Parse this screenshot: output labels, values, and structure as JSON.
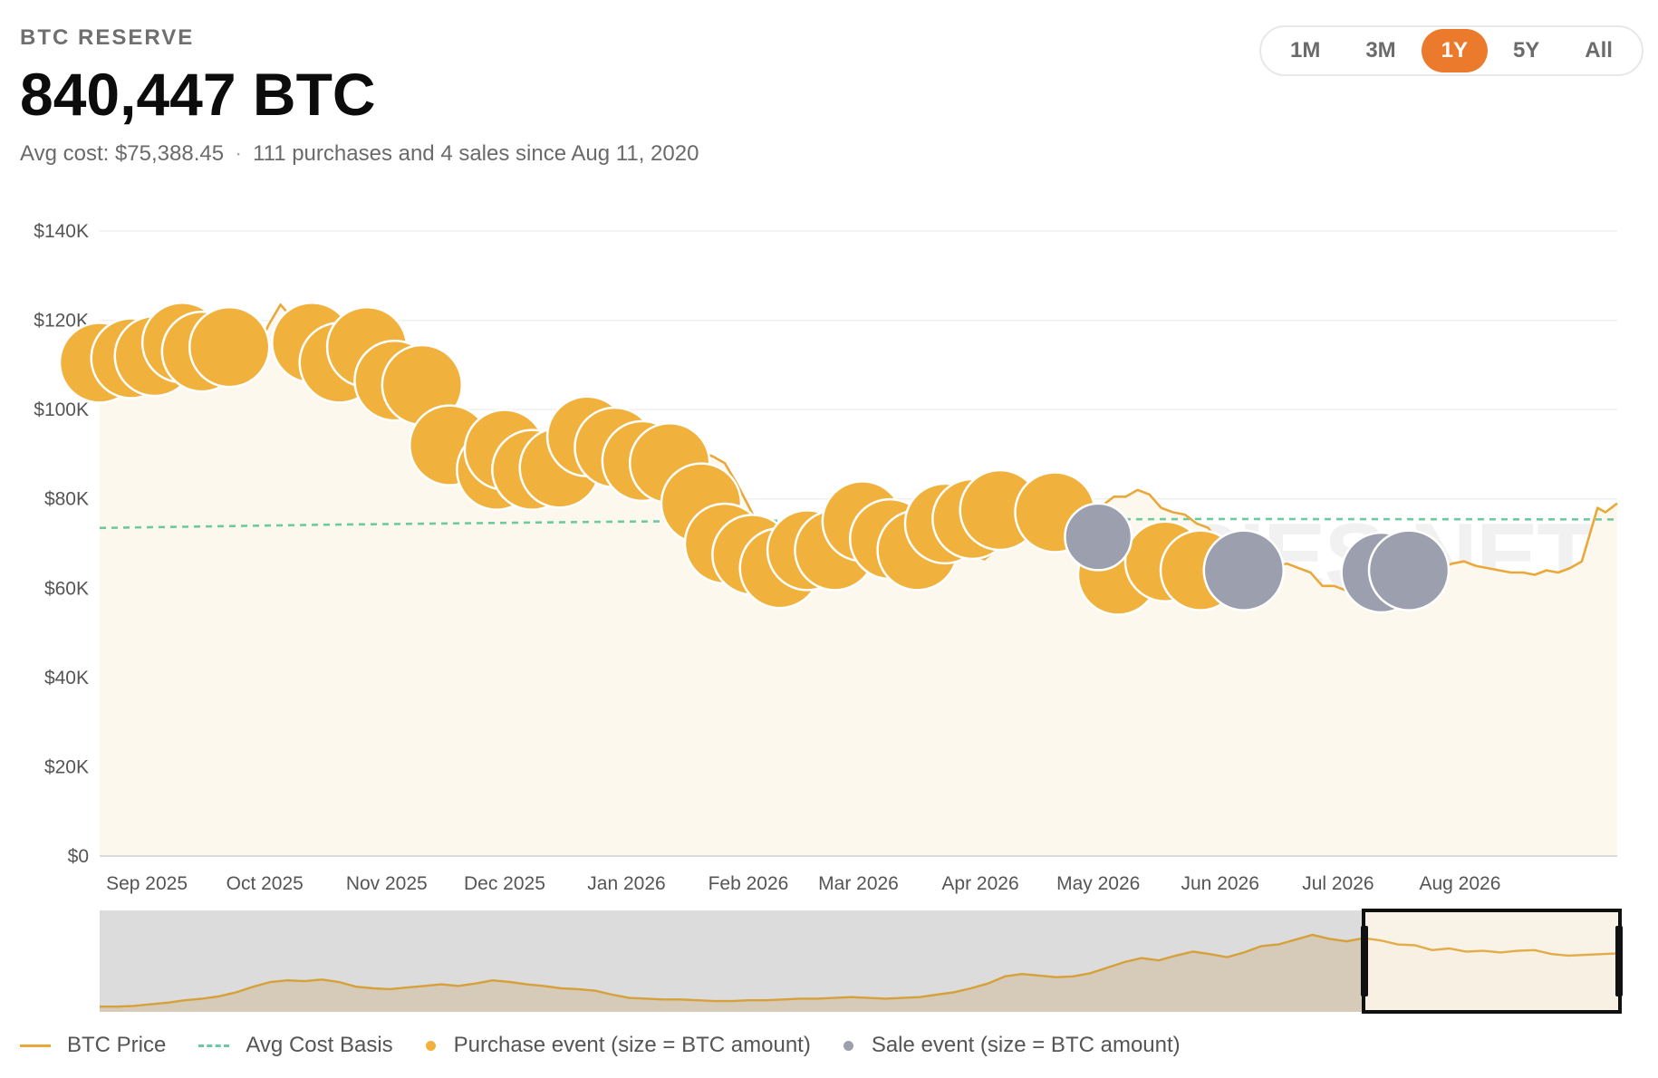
{
  "header": {
    "kicker": "BTC RESERVE",
    "holdings": "840,447 BTC",
    "avg_cost": "Avg cost: $75,388.45",
    "summary": "111 purchases and 4 sales since Aug 11, 2020"
  },
  "ranges": [
    {
      "label": "1M",
      "active": false
    },
    {
      "label": "3M",
      "active": false
    },
    {
      "label": "1Y",
      "active": true
    },
    {
      "label": "5Y",
      "active": false
    },
    {
      "label": "All",
      "active": false
    }
  ],
  "watermark": "BITCOINTREASURIES.NET",
  "colors": {
    "price_line": "#e8a93a",
    "price_area": "#fdf8ee",
    "avg_cost": "#6cc9a0",
    "purchase": "#f0b23d",
    "sale": "#9c9fae",
    "active_range": "#ec7a2c"
  },
  "legend": {
    "price": "BTC Price",
    "avg_cost": "Avg Cost Basis",
    "purchase": "Purchase event (size = BTC amount)",
    "sale": "Sale event (size = BTC amount)"
  },
  "chart_data": {
    "type": "line",
    "x_range": [
      "2025-08-20",
      "2026-09-10"
    ],
    "ylim": [
      0,
      140000
    ],
    "y_ticks": [
      0,
      20000,
      40000,
      60000,
      80000,
      100000,
      120000,
      140000
    ],
    "y_tick_labels": [
      "$0",
      "$20K",
      "$40K",
      "$60K",
      "$80K",
      "$100K",
      "$120K",
      "$140K"
    ],
    "x_ticks": [
      {
        "date": "2025-09-01",
        "label": "Sep 2025"
      },
      {
        "date": "2025-10-01",
        "label": "Oct 2025"
      },
      {
        "date": "2025-11-01",
        "label": "Nov 2025"
      },
      {
        "date": "2025-12-01",
        "label": "Dec 2025"
      },
      {
        "date": "2026-01-01",
        "label": "Jan 2026"
      },
      {
        "date": "2026-02-01",
        "label": "Feb 2026"
      },
      {
        "date": "2026-03-01",
        "label": "Mar 2026"
      },
      {
        "date": "2026-04-01",
        "label": "Apr 2026"
      },
      {
        "date": "2026-05-01",
        "label": "May 2026"
      },
      {
        "date": "2026-06-01",
        "label": "Jun 2026"
      },
      {
        "date": "2026-07-01",
        "label": "Jul 2026"
      },
      {
        "date": "2026-08-01",
        "label": "Aug 2026"
      }
    ],
    "series": [
      {
        "name": "BTC Price",
        "points": [
          [
            "2025-08-20",
            113000
          ],
          [
            "2025-08-24",
            111500
          ],
          [
            "2025-08-28",
            110500
          ],
          [
            "2025-09-01",
            111000
          ],
          [
            "2025-09-05",
            112500
          ],
          [
            "2025-09-09",
            114000
          ],
          [
            "2025-09-13",
            115500
          ],
          [
            "2025-09-17",
            116500
          ],
          [
            "2025-09-20",
            115500
          ],
          [
            "2025-09-23",
            112500
          ],
          [
            "2025-09-26",
            109500
          ],
          [
            "2025-09-29",
            113500
          ],
          [
            "2025-10-02",
            119000
          ],
          [
            "2025-10-05",
            123500
          ],
          [
            "2025-10-07",
            121500
          ],
          [
            "2025-10-09",
            123000
          ],
          [
            "2025-10-11",
            117000
          ],
          [
            "2025-10-13",
            110500
          ],
          [
            "2025-10-15",
            115500
          ],
          [
            "2025-10-17",
            107500
          ],
          [
            "2025-10-19",
            108000
          ],
          [
            "2025-10-21",
            108000
          ],
          [
            "2025-10-23",
            110500
          ],
          [
            "2025-10-25",
            111500
          ],
          [
            "2025-10-28",
            114000
          ],
          [
            "2025-10-31",
            109500
          ],
          [
            "2025-11-03",
            106500
          ],
          [
            "2025-11-05",
            101500
          ],
          [
            "2025-11-07",
            103500
          ],
          [
            "2025-11-09",
            102000
          ],
          [
            "2025-11-11",
            103500
          ],
          [
            "2025-11-13",
            101500
          ],
          [
            "2025-11-15",
            95500
          ],
          [
            "2025-11-17",
            92500
          ],
          [
            "2025-11-19",
            91500
          ],
          [
            "2025-11-21",
            85500
          ],
          [
            "2025-11-24",
            88000
          ],
          [
            "2025-11-27",
            91000
          ],
          [
            "2025-11-30",
            91500
          ],
          [
            "2025-12-03",
            92500
          ],
          [
            "2025-12-06",
            90000
          ],
          [
            "2025-12-09",
            92500
          ],
          [
            "2025-12-12",
            90000
          ],
          [
            "2025-12-15",
            86500
          ],
          [
            "2025-12-18",
            86000
          ],
          [
            "2025-12-21",
            88500
          ],
          [
            "2025-12-24",
            87500
          ],
          [
            "2025-12-27",
            87500
          ],
          [
            "2025-12-30",
            88000
          ],
          [
            "2026-01-02",
            89000
          ],
          [
            "2026-01-05",
            93500
          ],
          [
            "2026-01-08",
            91000
          ],
          [
            "2026-01-11",
            90500
          ],
          [
            "2026-01-14",
            95500
          ],
          [
            "2026-01-17",
            95000
          ],
          [
            "2026-01-20",
            90500
          ],
          [
            "2026-01-23",
            89500
          ],
          [
            "2026-01-26",
            88000
          ],
          [
            "2026-01-29",
            83500
          ],
          [
            "2026-02-01",
            78500
          ],
          [
            "2026-02-03",
            75000
          ],
          [
            "2026-02-05",
            63000
          ],
          [
            "2026-02-07",
            70000
          ],
          [
            "2026-02-10",
            69000
          ],
          [
            "2026-02-13",
            68500
          ],
          [
            "2026-02-16",
            68000
          ],
          [
            "2026-02-19",
            66500
          ],
          [
            "2026-02-22",
            64500
          ],
          [
            "2026-02-25",
            67500
          ],
          [
            "2026-02-28",
            66500
          ],
          [
            "2026-03-03",
            68000
          ],
          [
            "2026-03-06",
            70500
          ],
          [
            "2026-03-09",
            68500
          ],
          [
            "2026-03-12",
            70500
          ],
          [
            "2026-03-15",
            72500
          ],
          [
            "2026-03-18",
            74000
          ],
          [
            "2026-03-21",
            70500
          ],
          [
            "2026-03-24",
            68500
          ],
          [
            "2026-03-27",
            66500
          ],
          [
            "2026-03-30",
            67500
          ],
          [
            "2026-04-02",
            66500
          ],
          [
            "2026-04-05",
            68500
          ],
          [
            "2026-04-08",
            71500
          ],
          [
            "2026-04-11",
            72500
          ],
          [
            "2026-04-14",
            74500
          ],
          [
            "2026-04-17",
            76000
          ],
          [
            "2026-04-20",
            75500
          ],
          [
            "2026-04-23",
            77500
          ],
          [
            "2026-04-26",
            78000
          ],
          [
            "2026-04-29",
            76500
          ],
          [
            "2026-05-02",
            78500
          ],
          [
            "2026-05-05",
            80500
          ],
          [
            "2026-05-08",
            80500
          ],
          [
            "2026-05-11",
            82000
          ],
          [
            "2026-05-14",
            81000
          ],
          [
            "2026-05-17",
            78000
          ],
          [
            "2026-05-20",
            77000
          ],
          [
            "2026-05-23",
            76500
          ],
          [
            "2026-05-26",
            74500
          ],
          [
            "2026-05-29",
            73500
          ],
          [
            "2026-06-01",
            69500
          ],
          [
            "2026-06-03",
            62500
          ],
          [
            "2026-06-06",
            63000
          ],
          [
            "2026-06-09",
            66000
          ],
          [
            "2026-06-12",
            66500
          ],
          [
            "2026-06-15",
            65000
          ],
          [
            "2026-06-18",
            65500
          ],
          [
            "2026-06-21",
            64500
          ],
          [
            "2026-06-24",
            63500
          ],
          [
            "2026-06-27",
            60500
          ],
          [
            "2026-06-30",
            60500
          ],
          [
            "2026-07-03",
            59500
          ],
          [
            "2026-07-06",
            61500
          ],
          [
            "2026-07-09",
            63500
          ],
          [
            "2026-07-12",
            64500
          ],
          [
            "2026-07-15",
            63500
          ],
          [
            "2026-07-18",
            64500
          ],
          [
            "2026-07-21",
            65000
          ],
          [
            "2026-07-24",
            64000
          ],
          [
            "2026-07-27",
            64500
          ],
          [
            "2026-07-30",
            65500
          ],
          [
            "2026-08-02",
            66000
          ],
          [
            "2026-08-05",
            65000
          ],
          [
            "2026-08-08",
            64500
          ],
          [
            "2026-08-11",
            64000
          ],
          [
            "2026-08-14",
            63500
          ],
          [
            "2026-08-17",
            63500
          ],
          [
            "2026-08-20",
            63000
          ],
          [
            "2026-08-23",
            64000
          ],
          [
            "2026-08-26",
            63500
          ],
          [
            "2026-08-29",
            64500
          ],
          [
            "2026-09-01",
            66000
          ],
          [
            "2026-09-03",
            72000
          ],
          [
            "2026-09-05",
            78000
          ],
          [
            "2026-09-07",
            77000
          ],
          [
            "2026-09-10",
            79000
          ]
        ]
      },
      {
        "name": "Avg Cost Basis",
        "points": [
          [
            "2025-08-20",
            73500
          ],
          [
            "2025-10-15",
            74200
          ],
          [
            "2025-12-31",
            74900
          ],
          [
            "2026-03-15",
            75300
          ],
          [
            "2026-06-01",
            75500
          ],
          [
            "2026-09-10",
            75400
          ]
        ]
      }
    ],
    "purchases": [
      [
        "2025-08-20",
        110500,
        3500
      ],
      [
        "2025-08-28",
        111500,
        3000
      ],
      [
        "2025-09-03",
        112000,
        2300
      ],
      [
        "2025-09-10",
        115000,
        800
      ],
      [
        "2025-09-15",
        113000,
        1200
      ],
      [
        "2025-09-22",
        114000,
        600
      ],
      [
        "2025-10-13",
        115000,
        700
      ],
      [
        "2025-10-20",
        110500,
        600
      ],
      [
        "2025-10-27",
        114000,
        900
      ],
      [
        "2025-11-03",
        106500,
        700
      ],
      [
        "2025-11-10",
        105500,
        1000
      ],
      [
        "2025-11-17",
        92000,
        6500
      ],
      [
        "2025-11-29",
        86500,
        300
      ],
      [
        "2025-12-01",
        91000,
        9000
      ],
      [
        "2025-12-08",
        86500,
        8000
      ],
      [
        "2025-12-15",
        87000,
        1200
      ],
      [
        "2025-12-22",
        94000,
        1000
      ],
      [
        "2025-12-29",
        91500,
        9500
      ],
      [
        "2026-01-05",
        88500,
        13500
      ],
      [
        "2026-01-12",
        88000,
        3000
      ],
      [
        "2026-01-20",
        79000,
        1500
      ],
      [
        "2026-01-26",
        70000,
        1500
      ],
      [
        "2026-02-02",
        67500,
        3000
      ],
      [
        "2026-02-09",
        64500,
        800
      ],
      [
        "2026-02-16",
        68500,
        1500
      ],
      [
        "2026-02-23",
        68500,
        13000
      ],
      [
        "2026-03-02",
        75000,
        22000
      ],
      [
        "2026-03-09",
        71000,
        1500
      ],
      [
        "2026-03-16",
        68500,
        3500
      ],
      [
        "2026-03-23",
        74500,
        6000
      ],
      [
        "2026-03-30",
        75500,
        28000
      ],
      [
        "2026-04-06",
        77500,
        2500
      ],
      [
        "2026-04-20",
        77000,
        16000
      ],
      [
        "2026-05-06",
        63000,
        1500
      ],
      [
        "2026-05-18",
        66000,
        1200
      ],
      [
        "2026-05-27",
        64000,
        600
      ]
    ],
    "sales": [
      [
        "2026-05-01",
        71500,
        200
      ],
      [
        "2026-06-07",
        64000,
        2200
      ],
      [
        "2026-07-12",
        63500,
        800
      ],
      [
        "2026-07-19",
        64000,
        900
      ]
    ]
  }
}
